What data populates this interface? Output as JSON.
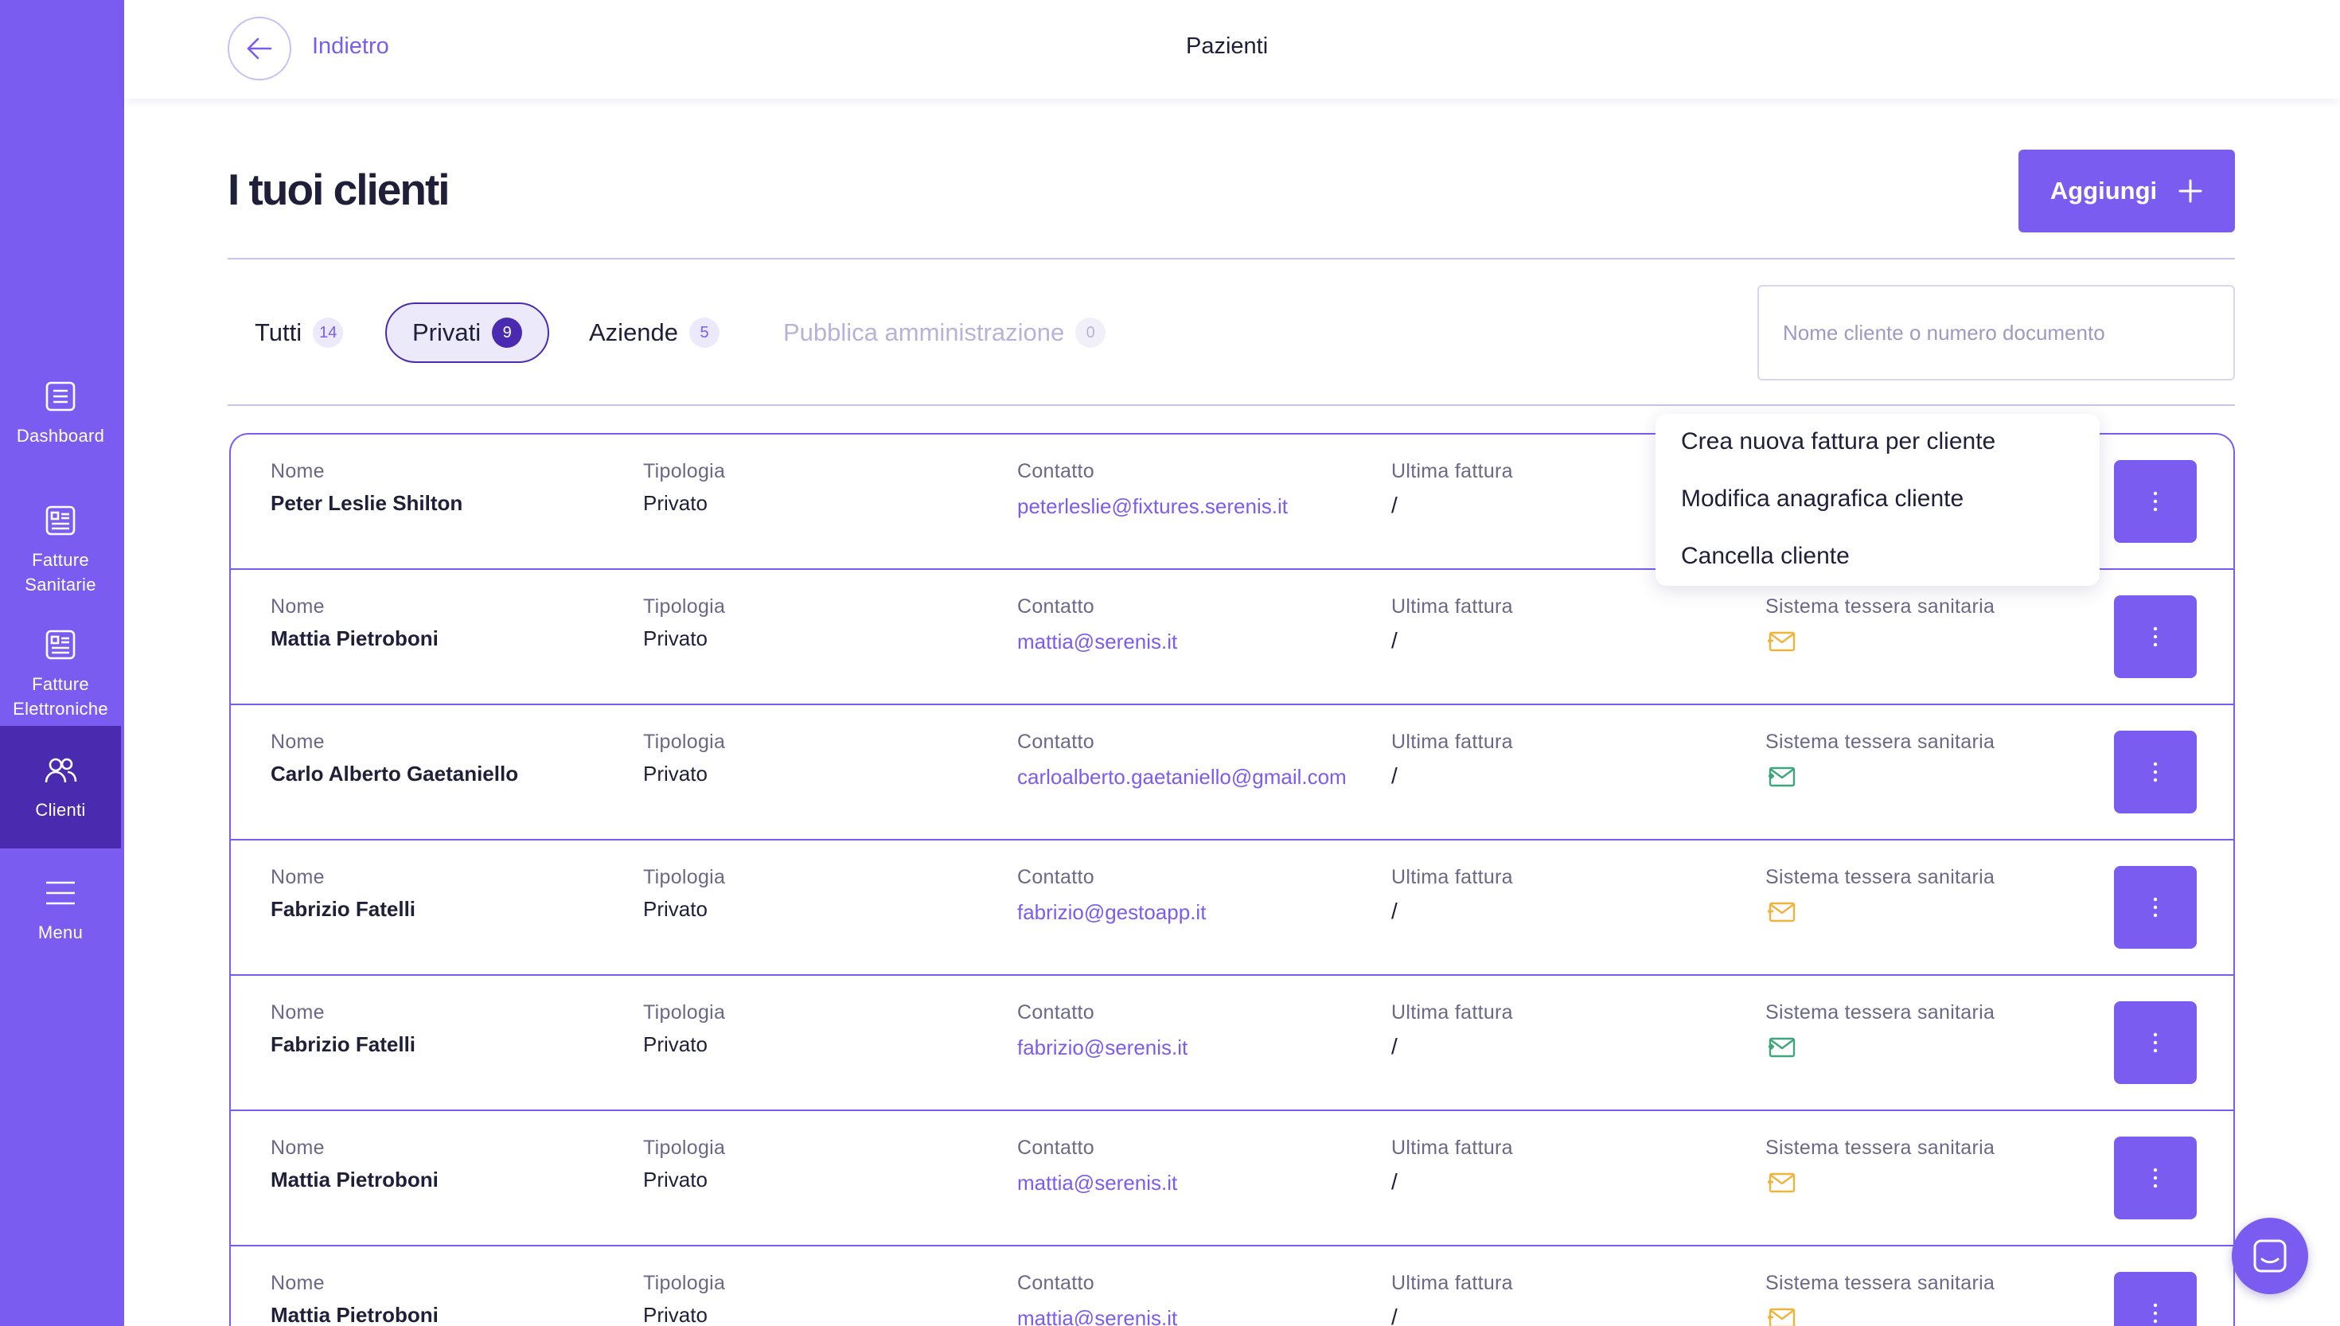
{
  "sidebar": {
    "items": [
      {
        "label": "Dashboard",
        "icon": "dashboard-icon"
      },
      {
        "label": "Fatture\nSanitarie",
        "icon": "invoice-icon"
      },
      {
        "label": "Fatture\nElettroniche",
        "icon": "invoice-icon"
      },
      {
        "label": "Clienti",
        "icon": "users-icon",
        "active": true
      },
      {
        "label": "Menu",
        "icon": "menu-icon"
      }
    ]
  },
  "header": {
    "back_label": "Indietro",
    "title": "Pazienti"
  },
  "page": {
    "title": "I tuoi clienti",
    "add_label": "Aggiungi"
  },
  "tabs": [
    {
      "label": "Tutti",
      "count": "14"
    },
    {
      "label": "Privati",
      "count": "9"
    },
    {
      "label": "Aziende",
      "count": "5"
    },
    {
      "label": "Pubblica amministrazione",
      "count": "0"
    }
  ],
  "search": {
    "placeholder": "Nome cliente o numero documento"
  },
  "columns": {
    "nome": "Nome",
    "tipologia": "Tipologia",
    "contatto": "Contatto",
    "ultima_fattura": "Ultima fattura",
    "sistema": "Sistema tessera sanitaria"
  },
  "rows": [
    {
      "nome": "Peter Leslie Shilton",
      "tipologia": "Privato",
      "contatto": "peterleslie@fixtures.serenis.it",
      "ultima_fattura": "/",
      "status": "hidden"
    },
    {
      "nome": "Mattia Pietroboni",
      "tipologia": "Privato",
      "contatto": "mattia@serenis.it",
      "ultima_fattura": "/",
      "status": "pending"
    },
    {
      "nome": "Carlo Alberto Gaetaniello",
      "tipologia": "Privato",
      "contatto": "carloalberto.gaetaniello@gmail.com",
      "ultima_fattura": "/",
      "status": "sent"
    },
    {
      "nome": "Fabrizio Fatelli",
      "tipologia": "Privato",
      "contatto": "fabrizio@gestoapp.it",
      "ultima_fattura": "/",
      "status": "pending"
    },
    {
      "nome": "Fabrizio Fatelli",
      "tipologia": "Privato",
      "contatto": "fabrizio@serenis.it",
      "ultima_fattura": "/",
      "status": "sent"
    },
    {
      "nome": "Mattia Pietroboni",
      "tipologia": "Privato",
      "contatto": "mattia@serenis.it",
      "ultima_fattura": "/",
      "status": "pending"
    },
    {
      "nome": "Mattia Pietroboni",
      "tipologia": "Privato",
      "contatto": "mattia@serenis.it",
      "ultima_fattura": "/",
      "status": "pending"
    }
  ],
  "context_menu": {
    "items": [
      "Crea nuova fattura per cliente",
      "Modifica anagrafica cliente",
      "Cancella cliente"
    ]
  },
  "colors": {
    "primary": "#7b5cf0",
    "sidebar_active": "#4a2bb0",
    "status_pending": "#f0b33c",
    "status_sent": "#3fa57a"
  }
}
